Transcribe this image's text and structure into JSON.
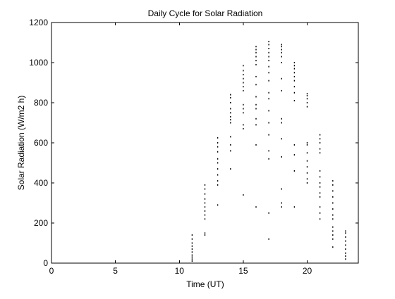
{
  "chart_data": {
    "type": "scatter",
    "title": "Daily Cycle for Solar Radiation",
    "xlabel": "Time (UT)",
    "ylabel": "Solar Radiation (W/m2 h)",
    "xlim": [
      0,
      24
    ],
    "ylim": [
      0,
      1200
    ],
    "xticks": [
      0,
      5,
      10,
      15,
      20
    ],
    "yticks": [
      0,
      200,
      400,
      600,
      800,
      1000,
      1200
    ],
    "grid": false,
    "legend": "none",
    "marker_color": "#000000",
    "series": [
      {
        "points": [
          [
            11,
            10
          ],
          [
            11,
            20
          ],
          [
            11,
            30
          ],
          [
            11,
            40
          ],
          [
            11,
            55
          ],
          [
            11,
            70
          ],
          [
            11,
            85
          ],
          [
            11,
            100
          ],
          [
            11,
            120
          ],
          [
            11,
            140
          ],
          [
            12,
            140
          ],
          [
            12,
            150
          ],
          [
            12,
            220
          ],
          [
            12,
            240
          ],
          [
            12,
            260
          ],
          [
            12,
            280
          ],
          [
            12,
            300
          ],
          [
            12,
            320
          ],
          [
            12,
            345
          ],
          [
            12,
            370
          ],
          [
            12,
            390
          ],
          [
            13,
            290
          ],
          [
            13,
            390
          ],
          [
            13,
            410
          ],
          [
            13,
            440
          ],
          [
            13,
            470
          ],
          [
            13,
            500
          ],
          [
            13,
            520
          ],
          [
            13,
            555
          ],
          [
            13,
            580
          ],
          [
            13,
            600
          ],
          [
            13,
            625
          ],
          [
            14,
            470
          ],
          [
            14,
            560
          ],
          [
            14,
            590
          ],
          [
            14,
            630
          ],
          [
            14,
            700
          ],
          [
            14,
            715
          ],
          [
            14,
            730
          ],
          [
            14,
            750
          ],
          [
            14,
            770
          ],
          [
            14,
            800
          ],
          [
            14,
            825
          ],
          [
            14,
            840
          ],
          [
            15,
            340
          ],
          [
            15,
            670
          ],
          [
            15,
            690
          ],
          [
            15,
            750
          ],
          [
            15,
            770
          ],
          [
            15,
            790
          ],
          [
            15,
            860
          ],
          [
            15,
            880
          ],
          [
            15,
            900
          ],
          [
            15,
            920
          ],
          [
            15,
            940
          ],
          [
            15,
            960
          ],
          [
            15,
            985
          ],
          [
            16,
            280
          ],
          [
            16,
            590
          ],
          [
            16,
            690
          ],
          [
            16,
            720
          ],
          [
            16,
            770
          ],
          [
            16,
            790
          ],
          [
            16,
            830
          ],
          [
            16,
            890
          ],
          [
            16,
            930
          ],
          [
            16,
            990
          ],
          [
            16,
            1010
          ],
          [
            16,
            1030
          ],
          [
            16,
            1050
          ],
          [
            16,
            1065
          ],
          [
            16,
            1080
          ],
          [
            17,
            120
          ],
          [
            17,
            250
          ],
          [
            17,
            520
          ],
          [
            17,
            560
          ],
          [
            17,
            640
          ],
          [
            17,
            700
          ],
          [
            17,
            760
          ],
          [
            17,
            820
          ],
          [
            17,
            850
          ],
          [
            17,
            910
          ],
          [
            17,
            950
          ],
          [
            17,
            980
          ],
          [
            17,
            1010
          ],
          [
            17,
            1030
          ],
          [
            17,
            1050
          ],
          [
            17,
            1070
          ],
          [
            17,
            1090
          ],
          [
            17,
            1105
          ],
          [
            18,
            280
          ],
          [
            18,
            300
          ],
          [
            18,
            370
          ],
          [
            18,
            530
          ],
          [
            18,
            620
          ],
          [
            18,
            700
          ],
          [
            18,
            720
          ],
          [
            18,
            860
          ],
          [
            18,
            920
          ],
          [
            18,
            1000
          ],
          [
            18,
            1030
          ],
          [
            18,
            1050
          ],
          [
            18,
            1065
          ],
          [
            18,
            1080
          ],
          [
            18,
            1090
          ],
          [
            19,
            280
          ],
          [
            19,
            460
          ],
          [
            19,
            540
          ],
          [
            19,
            590
          ],
          [
            19,
            810
          ],
          [
            19,
            850
          ],
          [
            19,
            880
          ],
          [
            19,
            910
          ],
          [
            19,
            930
          ],
          [
            19,
            950
          ],
          [
            19,
            970
          ],
          [
            19,
            985
          ],
          [
            19,
            1000
          ],
          [
            20,
            400
          ],
          [
            20,
            420
          ],
          [
            20,
            450
          ],
          [
            20,
            480
          ],
          [
            20,
            510
          ],
          [
            20,
            550
          ],
          [
            20,
            590
          ],
          [
            20,
            600
          ],
          [
            20,
            780
          ],
          [
            20,
            800
          ],
          [
            20,
            820
          ],
          [
            20,
            835
          ],
          [
            20,
            845
          ],
          [
            21,
            220
          ],
          [
            21,
            250
          ],
          [
            21,
            280
          ],
          [
            21,
            330
          ],
          [
            21,
            350
          ],
          [
            21,
            380
          ],
          [
            21,
            400
          ],
          [
            21,
            430
          ],
          [
            21,
            460
          ],
          [
            21,
            550
          ],
          [
            21,
            570
          ],
          [
            21,
            600
          ],
          [
            21,
            620
          ],
          [
            21,
            640
          ],
          [
            22,
            80
          ],
          [
            22,
            120
          ],
          [
            22,
            140
          ],
          [
            22,
            160
          ],
          [
            22,
            180
          ],
          [
            22,
            220
          ],
          [
            22,
            240
          ],
          [
            22,
            270
          ],
          [
            22,
            300
          ],
          [
            22,
            330
          ],
          [
            22,
            360
          ],
          [
            22,
            390
          ],
          [
            22,
            410
          ],
          [
            23,
            20
          ],
          [
            23,
            35
          ],
          [
            23,
            50
          ],
          [
            23,
            70
          ],
          [
            23,
            90
          ],
          [
            23,
            110
          ],
          [
            23,
            130
          ],
          [
            23,
            150
          ],
          [
            23,
            160
          ]
        ]
      }
    ]
  }
}
